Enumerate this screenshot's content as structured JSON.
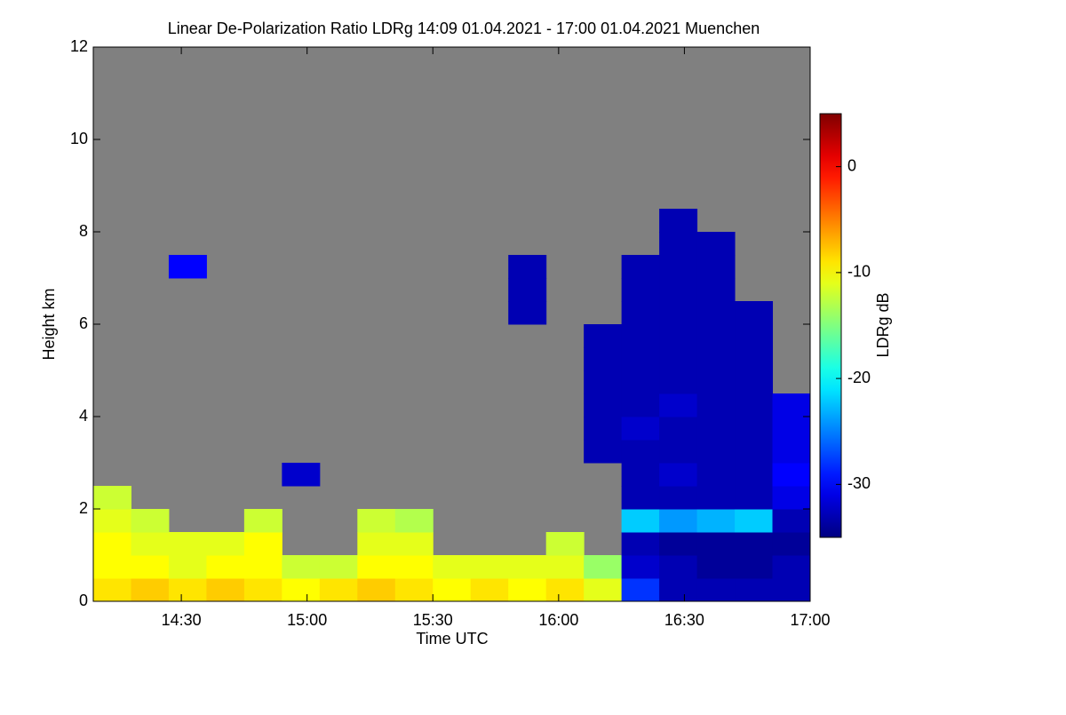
{
  "chart_data": {
    "type": "heatmap",
    "title": "Linear De-Polarization Ratio LDRg   14:09 01.04.2021 - 17:00 01.04.2021 Muenchen",
    "xlabel": "Time UTC",
    "ylabel": "Height km",
    "zlabel": "LDRg dB",
    "colormap": "jet",
    "nan_color": "#808080",
    "xlim": [
      849,
      1020
    ],
    "xticks": [
      {
        "value": 870,
        "label": "14:30"
      },
      {
        "value": 900,
        "label": "15:00"
      },
      {
        "value": 930,
        "label": "15:30"
      },
      {
        "value": 960,
        "label": "16:00"
      },
      {
        "value": 990,
        "label": "16:30"
      },
      {
        "value": 1020,
        "label": "17:00"
      }
    ],
    "ylim": [
      0,
      12
    ],
    "yticks": [
      0,
      2,
      4,
      6,
      8,
      10,
      12
    ],
    "zlim": [
      -35,
      5
    ],
    "zticks": [
      0,
      -10,
      -20,
      -30
    ],
    "x": [
      853.5,
      862.5,
      871.5,
      880.5,
      889.5,
      898.5,
      907.5,
      916.5,
      925.5,
      934.5,
      943.5,
      952.5,
      961.5,
      970.5,
      979.5,
      988.5,
      997.5,
      1006.5,
      1015.5
    ],
    "y": [
      0.25,
      0.75,
      1.25,
      1.75,
      2.25,
      2.75,
      3.25,
      3.75,
      4.25,
      4.75,
      5.25,
      5.75,
      6.25,
      6.75,
      7.25,
      7.75,
      8.25
    ],
    "z": [
      [
        -9,
        -8,
        -9,
        -8,
        -9,
        -10,
        -9,
        -8,
        -9,
        -10,
        -9,
        -10,
        -9,
        -11,
        -28,
        -33,
        -33,
        -33,
        -33
      ],
      [
        -10,
        -10,
        -11,
        -10,
        -10,
        -12,
        -12,
        -10,
        -10,
        -11,
        -11,
        -11,
        -11,
        -14,
        -32,
        -33,
        -34,
        -34,
        -33
      ],
      [
        -10,
        -11,
        -11,
        -11,
        -10,
        null,
        null,
        -11,
        -11,
        null,
        null,
        null,
        -12,
        null,
        -33,
        -34,
        -34,
        -34,
        -34
      ],
      [
        -11,
        -12,
        null,
        null,
        -12,
        null,
        null,
        -12,
        -13,
        null,
        null,
        null,
        null,
        null,
        -22,
        -24,
        -23,
        -22,
        -33
      ],
      [
        -12,
        null,
        null,
        null,
        null,
        null,
        null,
        null,
        null,
        null,
        null,
        null,
        null,
        null,
        -33,
        -33,
        -33,
        -33,
        -31
      ],
      [
        null,
        null,
        null,
        null,
        null,
        -32,
        null,
        null,
        null,
        null,
        null,
        null,
        null,
        null,
        -33,
        -32,
        -33,
        -33,
        -30
      ],
      [
        null,
        null,
        null,
        null,
        null,
        null,
        null,
        null,
        null,
        null,
        null,
        null,
        null,
        -33,
        -33,
        -33,
        -33,
        -33,
        -31
      ],
      [
        null,
        null,
        null,
        null,
        null,
        null,
        null,
        null,
        null,
        null,
        null,
        null,
        null,
        -33,
        -32,
        -33,
        -33,
        -33,
        -31
      ],
      [
        null,
        null,
        null,
        null,
        null,
        null,
        null,
        null,
        null,
        null,
        null,
        null,
        null,
        -33,
        -33,
        -32,
        -33,
        -33,
        -31
      ],
      [
        null,
        null,
        null,
        null,
        null,
        null,
        null,
        null,
        null,
        null,
        null,
        null,
        null,
        -33,
        -33,
        -33,
        -33,
        -33,
        null
      ],
      [
        null,
        null,
        null,
        null,
        null,
        null,
        null,
        null,
        null,
        null,
        null,
        null,
        null,
        -33,
        -33,
        -33,
        -33,
        -33,
        null
      ],
      [
        null,
        null,
        null,
        null,
        null,
        null,
        null,
        null,
        null,
        null,
        null,
        null,
        null,
        -33,
        -33,
        -33,
        -33,
        -33,
        null
      ],
      [
        null,
        null,
        null,
        null,
        null,
        null,
        null,
        null,
        null,
        null,
        null,
        -33,
        null,
        null,
        -33,
        -33,
        -33,
        -33,
        null
      ],
      [
        null,
        null,
        null,
        null,
        null,
        null,
        null,
        null,
        null,
        null,
        null,
        -33,
        null,
        null,
        -33,
        -33,
        -33,
        null,
        null
      ],
      [
        null,
        null,
        -30,
        null,
        null,
        null,
        null,
        null,
        null,
        null,
        null,
        -33,
        null,
        null,
        -33,
        -33,
        -33,
        null,
        null
      ],
      [
        null,
        null,
        null,
        null,
        null,
        null,
        null,
        null,
        null,
        null,
        null,
        null,
        null,
        null,
        null,
        -33,
        -33,
        null,
        null
      ],
      [
        null,
        null,
        null,
        null,
        null,
        null,
        null,
        null,
        null,
        null,
        null,
        null,
        null,
        null,
        null,
        -33,
        null,
        null,
        null
      ]
    ]
  }
}
